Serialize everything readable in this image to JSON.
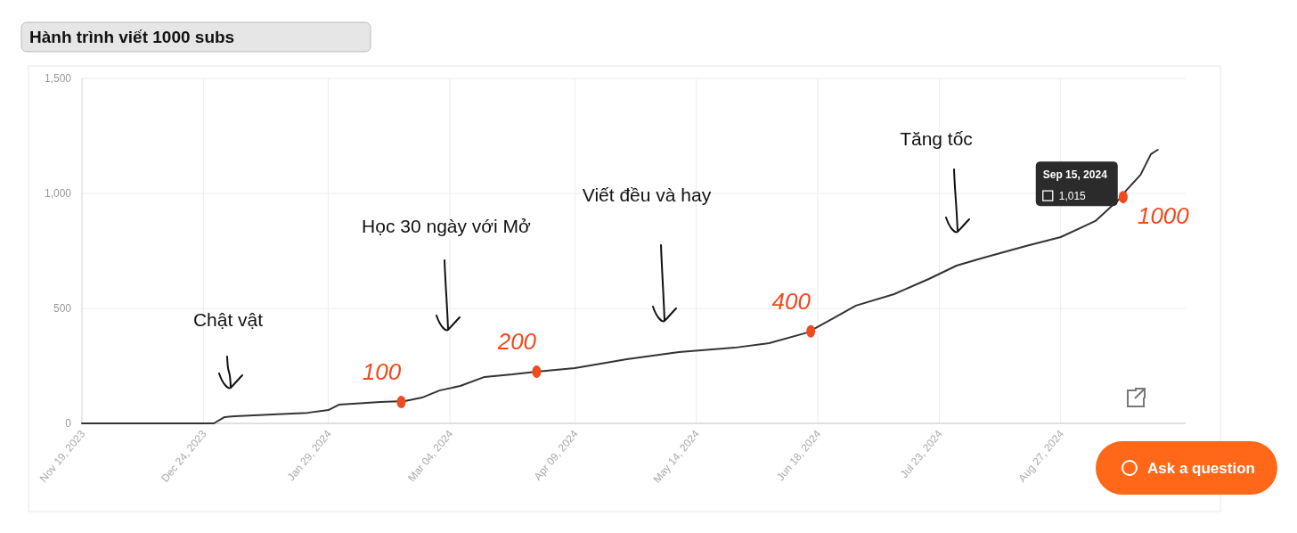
{
  "chart_data": {
    "type": "line",
    "title": "Hành trình viết 1000 subs",
    "x": [
      "2023-11-19",
      "2023-12-27",
      "2023-12-30",
      "2024-01-02",
      "2024-01-13",
      "2024-01-23",
      "2024-01-29",
      "2024-02-01",
      "2024-02-13",
      "2024-02-20",
      "2024-02-25",
      "2024-03-01",
      "2024-03-07",
      "2024-03-14",
      "2024-03-22",
      "2024-03-29",
      "2024-04-09",
      "2024-04-24",
      "2024-05-09",
      "2024-05-25",
      "2024-06-04",
      "2024-06-15",
      "2024-06-22",
      "2024-06-29",
      "2024-07-10",
      "2024-07-20",
      "2024-07-28",
      "2024-08-04",
      "2024-08-17",
      "2024-08-27",
      "2024-09-06",
      "2024-09-13",
      "2024-09-15",
      "2024-09-19",
      "2024-09-22",
      "2024-09-24"
    ],
    "series": [
      {
        "color": "#333333",
        "values": [
          0,
          0,
          27,
          31,
          39,
          46,
          58,
          81,
          93,
          97,
          112,
          143,
          163,
          202,
          213,
          225,
          240,
          279,
          310,
          329,
          349,
          395,
          453,
          512,
          562,
          628,
          686,
          717,
          771,
          810,
          880,
          977,
          1015,
          1081,
          1171,
          1190
        ]
      }
    ],
    "xlim": [
      "2023-11-19",
      "2024-10-02"
    ],
    "xticks": [
      {
        "value": "2023-11-19",
        "label": "Nov 19, 2023"
      },
      {
        "value": "2023-12-24",
        "label": "Dec 24, 2023"
      },
      {
        "value": "2024-01-29",
        "label": "Jan 29, 2024"
      },
      {
        "value": "2024-03-04",
        "label": "Mar 04, 2024"
      },
      {
        "value": "2024-04-09",
        "label": "Apr 09, 2024"
      },
      {
        "value": "2024-05-14",
        "label": "May 14, 2024"
      },
      {
        "value": "2024-06-18",
        "label": "Jun 18, 2024"
      },
      {
        "value": "2024-07-23",
        "label": "Jul 23, 2024"
      },
      {
        "value": "2024-08-27",
        "label": "Aug 27, 2024"
      }
    ],
    "ylim": [
      0,
      1500
    ],
    "yticks": [
      0,
      {
        "value": 500,
        "label": "500"
      },
      {
        "value": 1000,
        "label": "1,000"
      },
      {
        "value": 1500,
        "label": "1,500"
      }
    ],
    "grid": true,
    "marker": "none",
    "line_style": "solid",
    "annotations": [
      "Chật vật",
      "Học 30 ngày với Mở",
      "Viết đều và hay",
      "Tăng tốc",
      {
        "text": "100",
        "x": "2024-02-19",
        "y": 93
      },
      {
        "text": "200",
        "x": "2024-03-29",
        "y": 225
      },
      {
        "text": "400",
        "x": "2024-06-16",
        "y": 400
      },
      {
        "text": "1000",
        "x": "2024-09-14",
        "y": 984
      },
      {
        "text": "Sep 15, 2024\n1,015",
        "x": "2024-09-15",
        "y": 1015
      },
      "Ask a question"
    ]
  }
}
